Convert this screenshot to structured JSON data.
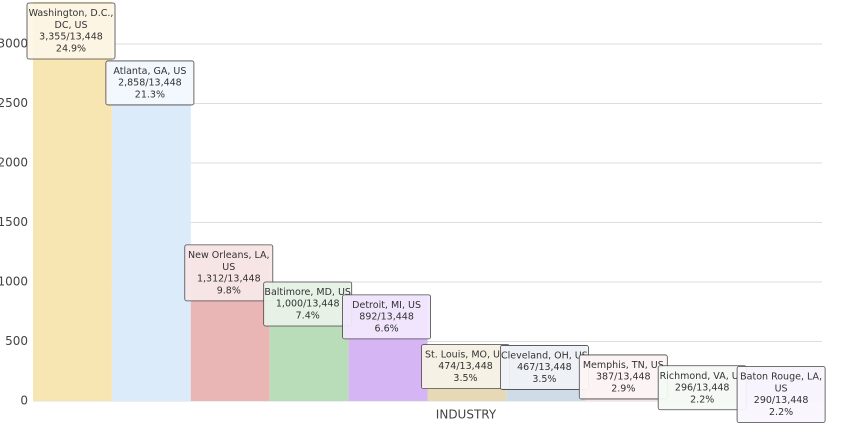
{
  "chart_data": {
    "type": "bar",
    "x_label": "INDUSTRY",
    "categories": [
      "Washington, D.C., DC, US",
      "Atlanta, GA, US",
      "New Orleans, LA, US",
      "Baltimore, MD, US",
      "Detroit, MI, US",
      "St. Louis, MO, US",
      "Cleveland, OH, US",
      "Memphis, TN, US",
      "Richmond, VA, US",
      "Baton Rouge, LA, US"
    ],
    "values": [
      3355,
      2858,
      1312,
      1000,
      892,
      474,
      467,
      387,
      296,
      290
    ],
    "value_labels": [
      "3,355/13,448",
      "2,858/13,448",
      "1,312/13,448",
      "1,000/13,448",
      "892/13,448",
      "474/13,448",
      "467/13,448",
      "387/13,448",
      "296/13,448",
      "290/13,448"
    ],
    "share_labels": [
      "24.9%",
      "21.3%",
      "9.8%",
      "7.4%",
      "6.6%",
      "3.5%",
      "3.5%",
      "2.9%",
      "2.2%",
      "2.2%"
    ],
    "colors": [
      "#f7e5b2",
      "#dcebf9",
      "#e9b5b5",
      "#b9dcb9",
      "#d5b5f4",
      "#e7d8b6",
      "#cfdce7",
      "#f4e1e1",
      "#e2f0e2",
      "#ebe2f8"
    ],
    "ylim": [
      0,
      3370
    ],
    "yticks": [
      0,
      500,
      1000,
      1500,
      2000,
      2500,
      3000
    ],
    "grid": true
  }
}
